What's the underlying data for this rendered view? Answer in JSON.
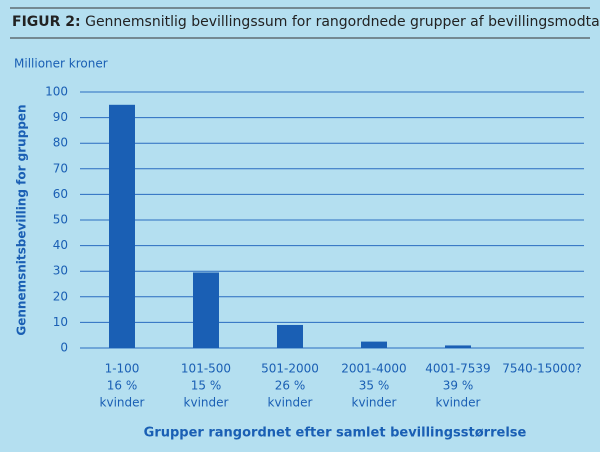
{
  "chart_data": {
    "type": "bar",
    "title_prefix": "FIGUR 2:",
    "title": "Gennemsnitlig bevillingssum for rangordnede grupper af bevillingsmodtagere.",
    "unit_label": "Millioner kroner",
    "y_label": "Gennemsnitsbevilling for gruppen",
    "x_label": "Grupper rangordnet efter samlet bevillingsstørrelse",
    "categories": [
      "1-100",
      "101-500",
      "501-2000",
      "2001-4000",
      "4001-7539",
      "7540-15000?"
    ],
    "category_sublabels": [
      [
        "16 %",
        "kvinder"
      ],
      [
        "15 %",
        "kvinder"
      ],
      [
        "26 %",
        "kvinder"
      ],
      [
        "35 %",
        "kvinder"
      ],
      [
        "39 %",
        "kvinder"
      ],
      null
    ],
    "values": [
      95,
      29.5,
      9,
      2.5,
      1,
      null
    ],
    "color": "#1a5fb4",
    "ylim": [
      0,
      100
    ],
    "yticks": [
      0,
      10,
      20,
      30,
      40,
      50,
      60,
      70,
      80,
      90,
      100
    ],
    "grid": true
  }
}
